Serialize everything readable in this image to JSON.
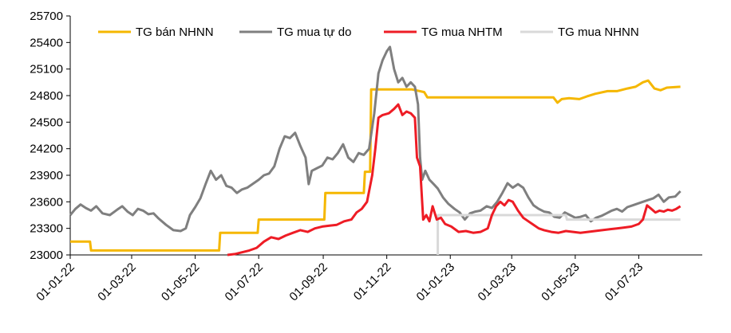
{
  "chart_data": {
    "type": "line",
    "title": "",
    "xlabel": "",
    "ylabel": "",
    "ylim": [
      23000,
      25700
    ],
    "y_ticks": [
      23000,
      23300,
      23600,
      23900,
      24200,
      24500,
      24800,
      25100,
      25400,
      25700
    ],
    "x_range": [
      "2022-01-01",
      "2023-08-31"
    ],
    "x_tick_labels": [
      "01-01-22",
      "01-03-22",
      "01-05-22",
      "01-07-22",
      "01-09-22",
      "01-11-22",
      "01-01-23",
      "01-03-23",
      "01-05-23",
      "01-07-23"
    ],
    "x_tick_dates": [
      "2022-01-01",
      "2022-03-01",
      "2022-05-01",
      "2022-07-01",
      "2022-09-01",
      "2022-11-01",
      "2023-01-01",
      "2023-03-01",
      "2023-05-01",
      "2023-07-01"
    ],
    "grid": false,
    "legend_position": "top",
    "series": [
      {
        "name": "TG bán NHNN",
        "color": "#F5B700",
        "step": true,
        "points": [
          [
            "2022-01-01",
            23150
          ],
          [
            "2022-01-20",
            23150
          ],
          [
            "2022-01-21",
            23050
          ],
          [
            "2022-05-24",
            23050
          ],
          [
            "2022-05-25",
            23250
          ],
          [
            "2022-06-30",
            23250
          ],
          [
            "2022-07-01",
            23400
          ],
          [
            "2022-09-02",
            23400
          ],
          [
            "2022-09-03",
            23700
          ],
          [
            "2022-10-10",
            23700
          ],
          [
            "2022-10-11",
            23940
          ],
          [
            "2022-10-16",
            23940
          ],
          [
            "2022-10-17",
            24870
          ],
          [
            "2022-11-25",
            24870
          ],
          [
            "2022-12-07",
            24840
          ],
          [
            "2022-12-10",
            24780
          ],
          [
            "2023-04-10",
            24780
          ],
          [
            "2023-04-14",
            24720
          ],
          [
            "2023-04-18",
            24760
          ],
          [
            "2023-04-25",
            24770
          ],
          [
            "2023-05-05",
            24760
          ],
          [
            "2023-05-12",
            24790
          ],
          [
            "2023-05-20",
            24820
          ],
          [
            "2023-06-01",
            24850
          ],
          [
            "2023-06-10",
            24850
          ],
          [
            "2023-06-20",
            24880
          ],
          [
            "2023-06-28",
            24900
          ],
          [
            "2023-07-05",
            24950
          ],
          [
            "2023-07-10",
            24970
          ],
          [
            "2023-07-16",
            24880
          ],
          [
            "2023-07-22",
            24860
          ],
          [
            "2023-07-28",
            24890
          ],
          [
            "2023-08-10",
            24900
          ]
        ]
      },
      {
        "name": "TG mua tự do",
        "color": "#7F7F7F",
        "step": false,
        "points": [
          [
            "2022-01-01",
            23450
          ],
          [
            "2022-01-06",
            23520
          ],
          [
            "2022-01-11",
            23570
          ],
          [
            "2022-01-16",
            23530
          ],
          [
            "2022-01-21",
            23500
          ],
          [
            "2022-01-26",
            23550
          ],
          [
            "2022-02-01",
            23470
          ],
          [
            "2022-02-08",
            23450
          ],
          [
            "2022-02-15",
            23510
          ],
          [
            "2022-02-20",
            23550
          ],
          [
            "2022-02-25",
            23490
          ],
          [
            "2022-03-02",
            23450
          ],
          [
            "2022-03-07",
            23520
          ],
          [
            "2022-03-12",
            23500
          ],
          [
            "2022-03-17",
            23460
          ],
          [
            "2022-03-22",
            23470
          ],
          [
            "2022-03-27",
            23410
          ],
          [
            "2022-04-03",
            23340
          ],
          [
            "2022-04-10",
            23280
          ],
          [
            "2022-04-17",
            23270
          ],
          [
            "2022-04-22",
            23300
          ],
          [
            "2022-04-26",
            23450
          ],
          [
            "2022-05-01",
            23540
          ],
          [
            "2022-05-06",
            23640
          ],
          [
            "2022-05-11",
            23800
          ],
          [
            "2022-05-16",
            23950
          ],
          [
            "2022-05-21",
            23850
          ],
          [
            "2022-05-26",
            23900
          ],
          [
            "2022-05-31",
            23780
          ],
          [
            "2022-06-05",
            23760
          ],
          [
            "2022-06-10",
            23700
          ],
          [
            "2022-06-15",
            23740
          ],
          [
            "2022-06-20",
            23760
          ],
          [
            "2022-06-25",
            23800
          ],
          [
            "2022-07-01",
            23850
          ],
          [
            "2022-07-06",
            23900
          ],
          [
            "2022-07-11",
            23920
          ],
          [
            "2022-07-16",
            24000
          ],
          [
            "2022-07-21",
            24200
          ],
          [
            "2022-07-26",
            24340
          ],
          [
            "2022-07-31",
            24320
          ],
          [
            "2022-08-05",
            24380
          ],
          [
            "2022-08-10",
            24230
          ],
          [
            "2022-08-15",
            24100
          ],
          [
            "2022-08-18",
            23800
          ],
          [
            "2022-08-21",
            23950
          ],
          [
            "2022-08-26",
            23980
          ],
          [
            "2022-08-31",
            24010
          ],
          [
            "2022-09-05",
            24100
          ],
          [
            "2022-09-10",
            24080
          ],
          [
            "2022-09-15",
            24150
          ],
          [
            "2022-09-20",
            24250
          ],
          [
            "2022-09-25",
            24100
          ],
          [
            "2022-09-30",
            24050
          ],
          [
            "2022-10-05",
            24150
          ],
          [
            "2022-10-10",
            24130
          ],
          [
            "2022-10-15",
            24200
          ],
          [
            "2022-10-20",
            24600
          ],
          [
            "2022-10-24",
            25050
          ],
          [
            "2022-10-28",
            25200
          ],
          [
            "2022-11-01",
            25300
          ],
          [
            "2022-11-04",
            25350
          ],
          [
            "2022-11-08",
            25100
          ],
          [
            "2022-11-12",
            24950
          ],
          [
            "2022-11-16",
            25000
          ],
          [
            "2022-11-20",
            24900
          ],
          [
            "2022-11-24",
            24950
          ],
          [
            "2022-11-28",
            24900
          ],
          [
            "2022-12-01",
            24700
          ],
          [
            "2022-12-03",
            24100
          ],
          [
            "2022-12-05",
            23850
          ],
          [
            "2022-12-08",
            23950
          ],
          [
            "2022-12-12",
            23850
          ],
          [
            "2022-12-16",
            23800
          ],
          [
            "2022-12-20",
            23750
          ],
          [
            "2022-12-25",
            23650
          ],
          [
            "2022-12-30",
            23580
          ],
          [
            "2023-01-05",
            23520
          ],
          [
            "2023-01-10",
            23480
          ],
          [
            "2023-01-15",
            23400
          ],
          [
            "2023-01-20",
            23470
          ],
          [
            "2023-01-25",
            23490
          ],
          [
            "2023-01-30",
            23500
          ],
          [
            "2023-02-05",
            23550
          ],
          [
            "2023-02-10",
            23530
          ],
          [
            "2023-02-15",
            23600
          ],
          [
            "2023-02-20",
            23700
          ],
          [
            "2023-02-25",
            23810
          ],
          [
            "2023-03-02",
            23760
          ],
          [
            "2023-03-07",
            23800
          ],
          [
            "2023-03-12",
            23760
          ],
          [
            "2023-03-17",
            23650
          ],
          [
            "2023-03-22",
            23560
          ],
          [
            "2023-03-27",
            23520
          ],
          [
            "2023-04-01",
            23490
          ],
          [
            "2023-04-06",
            23480
          ],
          [
            "2023-04-11",
            23430
          ],
          [
            "2023-04-16",
            23420
          ],
          [
            "2023-04-21",
            23480
          ],
          [
            "2023-04-26",
            23450
          ],
          [
            "2023-05-01",
            23420
          ],
          [
            "2023-05-06",
            23430
          ],
          [
            "2023-05-11",
            23450
          ],
          [
            "2023-05-16",
            23380
          ],
          [
            "2023-05-21",
            23420
          ],
          [
            "2023-05-26",
            23440
          ],
          [
            "2023-05-31",
            23470
          ],
          [
            "2023-06-05",
            23500
          ],
          [
            "2023-06-10",
            23520
          ],
          [
            "2023-06-15",
            23490
          ],
          [
            "2023-06-20",
            23540
          ],
          [
            "2023-06-25",
            23560
          ],
          [
            "2023-06-30",
            23580
          ],
          [
            "2023-07-05",
            23600
          ],
          [
            "2023-07-10",
            23620
          ],
          [
            "2023-07-15",
            23640
          ],
          [
            "2023-07-20",
            23680
          ],
          [
            "2023-07-25",
            23600
          ],
          [
            "2023-07-30",
            23650
          ],
          [
            "2023-08-05",
            23660
          ],
          [
            "2023-08-10",
            23720
          ]
        ]
      },
      {
        "name": "TG mua NHTM",
        "color": "#EE1C25",
        "step": false,
        "points": [
          [
            "2022-06-01",
            23000
          ],
          [
            "2022-06-08",
            23010
          ],
          [
            "2022-06-15",
            23030
          ],
          [
            "2022-06-22",
            23050
          ],
          [
            "2022-06-29",
            23080
          ],
          [
            "2022-07-06",
            23150
          ],
          [
            "2022-07-13",
            23200
          ],
          [
            "2022-07-20",
            23180
          ],
          [
            "2022-07-27",
            23220
          ],
          [
            "2022-08-03",
            23250
          ],
          [
            "2022-08-10",
            23280
          ],
          [
            "2022-08-17",
            23260
          ],
          [
            "2022-08-24",
            23300
          ],
          [
            "2022-08-31",
            23320
          ],
          [
            "2022-09-07",
            23330
          ],
          [
            "2022-09-14",
            23340
          ],
          [
            "2022-09-21",
            23380
          ],
          [
            "2022-09-28",
            23400
          ],
          [
            "2022-10-03",
            23480
          ],
          [
            "2022-10-08",
            23520
          ],
          [
            "2022-10-13",
            23600
          ],
          [
            "2022-10-18",
            23900
          ],
          [
            "2022-10-21",
            24200
          ],
          [
            "2022-10-24",
            24550
          ],
          [
            "2022-10-28",
            24580
          ],
          [
            "2022-11-03",
            24600
          ],
          [
            "2022-11-08",
            24650
          ],
          [
            "2022-11-12",
            24700
          ],
          [
            "2022-11-16",
            24580
          ],
          [
            "2022-11-20",
            24620
          ],
          [
            "2022-11-24",
            24600
          ],
          [
            "2022-11-28",
            24550
          ],
          [
            "2022-11-30",
            24100
          ],
          [
            "2022-12-03",
            24000
          ],
          [
            "2022-12-06",
            23400
          ],
          [
            "2022-12-09",
            23450
          ],
          [
            "2022-12-12",
            23380
          ],
          [
            "2022-12-15",
            23550
          ],
          [
            "2022-12-19",
            23400
          ],
          [
            "2022-12-23",
            23420
          ],
          [
            "2022-12-27",
            23350
          ],
          [
            "2023-01-02",
            23320
          ],
          [
            "2023-01-09",
            23260
          ],
          [
            "2023-01-16",
            23270
          ],
          [
            "2023-01-23",
            23250
          ],
          [
            "2023-01-30",
            23260
          ],
          [
            "2023-02-06",
            23300
          ],
          [
            "2023-02-10",
            23450
          ],
          [
            "2023-02-14",
            23550
          ],
          [
            "2023-02-18",
            23600
          ],
          [
            "2023-02-22",
            23560
          ],
          [
            "2023-02-26",
            23620
          ],
          [
            "2023-03-02",
            23600
          ],
          [
            "2023-03-07",
            23500
          ],
          [
            "2023-03-12",
            23420
          ],
          [
            "2023-03-17",
            23380
          ],
          [
            "2023-03-22",
            23340
          ],
          [
            "2023-03-27",
            23300
          ],
          [
            "2023-04-01",
            23280
          ],
          [
            "2023-04-08",
            23260
          ],
          [
            "2023-04-15",
            23250
          ],
          [
            "2023-04-22",
            23270
          ],
          [
            "2023-04-29",
            23260
          ],
          [
            "2023-05-06",
            23250
          ],
          [
            "2023-05-13",
            23260
          ],
          [
            "2023-05-20",
            23270
          ],
          [
            "2023-05-27",
            23280
          ],
          [
            "2023-06-03",
            23290
          ],
          [
            "2023-06-10",
            23300
          ],
          [
            "2023-06-17",
            23310
          ],
          [
            "2023-06-24",
            23320
          ],
          [
            "2023-07-01",
            23350
          ],
          [
            "2023-07-05",
            23400
          ],
          [
            "2023-07-09",
            23560
          ],
          [
            "2023-07-13",
            23520
          ],
          [
            "2023-07-17",
            23480
          ],
          [
            "2023-07-21",
            23500
          ],
          [
            "2023-07-25",
            23490
          ],
          [
            "2023-07-29",
            23510
          ],
          [
            "2023-08-02",
            23500
          ],
          [
            "2023-08-06",
            23520
          ],
          [
            "2023-08-10",
            23550
          ]
        ]
      },
      {
        "name": "TG mua NHNN",
        "color": "#D9D9D9",
        "step": true,
        "points": [
          [
            "2022-12-20",
            23000
          ],
          [
            "2022-12-20",
            23450
          ],
          [
            "2023-04-22",
            23450
          ],
          [
            "2023-04-23",
            23400
          ],
          [
            "2023-08-10",
            23400
          ]
        ]
      }
    ]
  }
}
